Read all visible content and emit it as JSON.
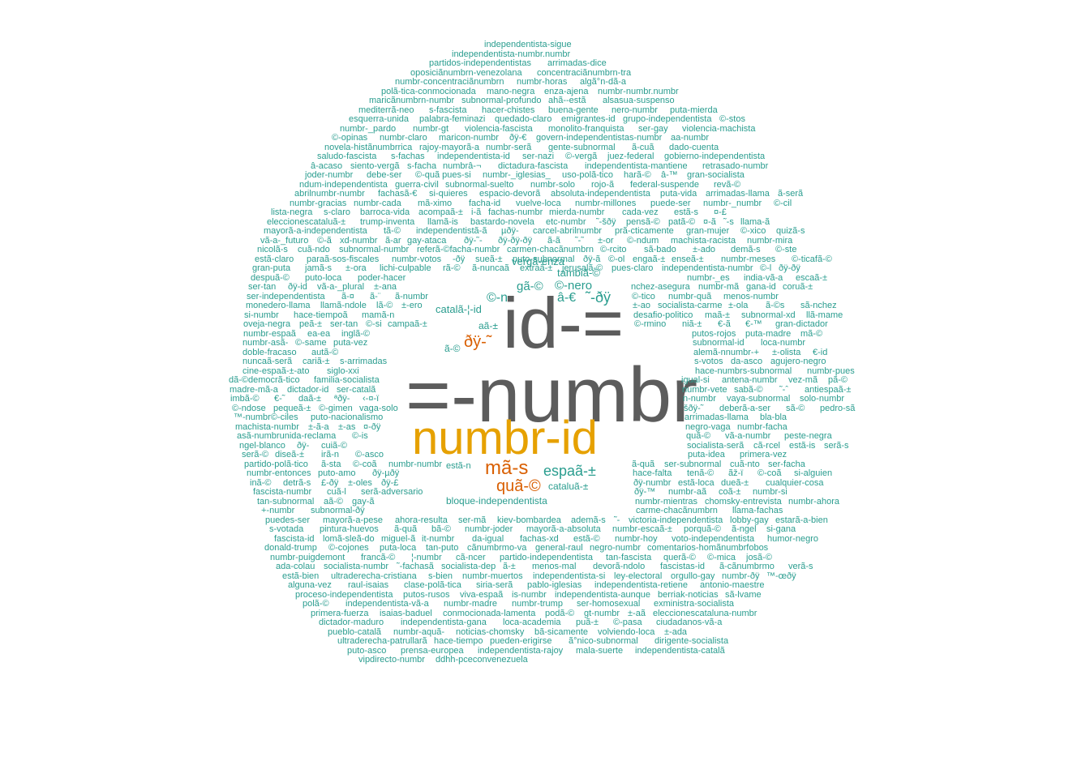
{
  "colors": {
    "background": "#ffffff",
    "tier_main": "#5c5c5c",
    "tier_second": "#e6a100",
    "tier_third": "#d95f02",
    "tier_small": "#2a9d8f"
  },
  "words": {
    "big": [
      {
        "text": "id-=",
        "tier": "main"
      },
      {
        "text": "=-numbr",
        "tier": "main"
      },
      {
        "text": "numbr-id",
        "tier": "second"
      },
      {
        "text": "mã-s",
        "tier": "third"
      },
      {
        "text": "ðÿ-˜",
        "tier": "third"
      },
      {
        "text": "quã-©",
        "tier": "third"
      },
      {
        "text": "espaã-±",
        "tier": "small"
      },
      {
        "text": "©-n",
        "tier": "small"
      },
      {
        "text": "˜-ðÿ",
        "tier": "small"
      },
      {
        "text": "â-€",
        "tier": "small"
      },
      {
        "text": "gã-©",
        "tier": "small"
      },
      {
        "text": "©-nero",
        "tier": "small"
      },
      {
        "text": "tambiã-©",
        "tier": "small"
      },
      {
        "text": "vergã-enza",
        "tier": "small"
      },
      {
        "text": "catalã-¦-id",
        "tier": "small"
      },
      {
        "text": "bloque-independentista",
        "tier": "small"
      },
      {
        "text": "cataluã-±",
        "tier": "small"
      },
      {
        "text": "estã-n",
        "tier": "small"
      },
      {
        "text": "ã-©",
        "tier": "small"
      },
      {
        "text": "aã-±",
        "tier": "small"
      }
    ],
    "small": [
      "independentista-sigue",
      "independentista-numbr.numbr",
      "partidos-independentistas",
      "arrimadas-dice",
      "oposiciãnumbrn-venezolana",
      "concentraciãnumbrn-tra",
      "numbr-concentraciãnumbrn",
      "numbr-horas",
      "algã°n-dã-a",
      "polã-tica-conmocionada",
      "mano-negra",
      "enza-ajena",
      "numbr-numbr.numbr",
      "maricãnumbrn-numbr",
      "subnormal-profundo",
      "ahã--estã",
      "alsasua-suspenso",
      "mediterrã-neo",
      "s-fascista",
      "hacer-chistes",
      "buena-gente",
      "nero-numbr",
      "puta-mierda",
      "esquerra-unida",
      "palabra-feminazi",
      "quedado-claro",
      "emigrantes-id",
      "grupo-independentista",
      "©-stos",
      "numbr-_pardo",
      "numbr-gt",
      "violencia-fascista",
      "monolito-franquista",
      "ser-gay",
      "violencia-machista",
      "©-opinas",
      "numbr-claro",
      "maricon-numbr",
      "ðÿ-€",
      "govern-independentistas-numbr",
      "aa-numbr",
      "novela-histãnumbrrica",
      "rajoy-mayorã-a",
      "numbr-serã",
      "gente-subnormal",
      "ã-cuã",
      "dado-cuenta",
      "saludo-fascista",
      "s-fachas",
      "independentista-id",
      "ser-nazi",
      "©-vergã",
      "juez-federal",
      "gobierno-independentista",
      "â-acaso",
      "siento-vergã",
      "s-facha",
      "numbrâ-¬",
      "dictadura-fascista",
      "independentista-mantiene",
      "retrasado-numbr",
      "joder-numbr",
      "debe-ser",
      "©-quã pues-si",
      "numbr-_iglesias_",
      "uso-polã-tico",
      "harã-©",
      "â-™",
      "gran-socialista",
      "ndum-independentista",
      "guerra-civil",
      "subnormal-suelto",
      "numbr-solo",
      "rojo-ã",
      "federal-suspende",
      "revã-©",
      "abrilnumbr-numbr",
      "fachasã-€",
      "si-quieres",
      "espacio-devorã",
      "absoluta-independentista",
      "puta-vida",
      "arrimadas-llama",
      "ã-serã",
      "numbr-gracias",
      "numbr-cada",
      "mã-ximo",
      "facha-id",
      "vuelve-loca",
      "numbr-millones",
      "puede-ser",
      "numbr-_numbr",
      "©-cil",
      "lista-negra",
      "s-claro",
      "barroca-vida",
      "acompaã-±",
      "i-ã",
      "fachas-numbr",
      "mierda-numbr",
      "cada-vez",
      "estã-s",
      "¤-£",
      "eleccionescataluã-±",
      "trump-inventa",
      "llamã-is",
      "bastardo-novela",
      "etc-numbr",
      "˜-šðÿ",
      "pensã-©",
      "patã-©",
      "¤-ã",
      "˜-s",
      "llama-ã",
      "mayorã-a-independentista",
      "tã-©",
      "independentistã-ã",
      "µðÿ-",
      "carcel-abrilnumbr",
      "prã-cticamente",
      "gran-mujer",
      "©-xico",
      "quizã-s",
      "vã-a-_futuro",
      "©-ã",
      "xd-numbr",
      "ã-ar",
      "gay-ataca",
      "ðÿ-˜-",
      "ðÿ-ðÿ-ðÿ",
      "ã-ã",
      "˜-˜",
      "±-or",
      "©-ndum",
      "machista-racista",
      "numbr-mira",
      "nicolã-s",
      "cuã-ndo",
      "subnormal-numbr",
      "referã-©facha-numbr",
      "carmen-chacãnumbrn",
      "©-rcito",
      "sã-bado",
      "±-ado",
      "demã-s",
      "©-ste",
      "estã-claro",
      "paraã-sos-fiscales",
      "numbr-votos",
      "-ðÿ",
      "sueã-±",
      "puto-subnormal",
      "ðÿ-ã",
      "©-ol",
      "engaã-±",
      "enseã-±",
      "numbr-meses",
      "©-ticafã-©",
      "gran-puta",
      "jamã-s",
      "±-ora",
      "lichi-culpable",
      "rã-©",
      "ã-nuncaã",
      "extraã-±",
      "jerusalã-©",
      "pues-claro",
      "independentista-numbr",
      "©-l",
      "ðÿ-ðÿ",
      "despuã-©",
      "puto-loca",
      "poder-hacer",
      "numbr-_es",
      "india-vã-a",
      "escaã-±",
      "ser-tan",
      "ðÿ-id",
      "vã-a-_plural",
      "±-ana",
      "nchez-asegura",
      "numbr-mã",
      "gana-id",
      "coruã-±",
      "ser-independentista",
      "ã-¤",
      "ã-¨",
      "ã-numbr",
      "©-tico",
      "numbr-quã",
      "menos-numbr",
      "monedero-llama",
      "llamã-ndole",
      "lã-©",
      "±-ero",
      "±-ao",
      "socialista-carme",
      "±-ola",
      "ã-©s",
      "sã-nchez",
      "si-numbr",
      "hace-tiempoã",
      "mamã-n",
      "desafio-politico",
      "maã-±",
      "subnormal-xd",
      "llã-mame",
      "oveja-negra",
      "peã-±",
      "ser-tan",
      "©-si",
      "campaã-±",
      "©-rmino",
      "niã-±",
      "€-ã",
      "€-™",
      "gran-dictador",
      "numbr-espaã",
      "ea-ea",
      "inglã-©",
      "putos-rojos",
      "puta-madre",
      "mã-©",
      "numbr-asã-",
      "©-same",
      "puta-vez",
      "subnormal-id",
      "loca-numbr",
      "doble-fracaso",
      "autã-©",
      "alemã-nnumbr-+",
      "±-olista",
      "€-id",
      "nuncaã-serã",
      "cariã-±",
      "s-arrimadas",
      "s-votos",
      "da-asco",
      "agujero-negro",
      "cine-espaã-±-ato",
      "siglo-xxi",
      "hace-numbrs-subnormal",
      "numbr-pues",
      "dã-©democrã-tico",
      "familia-socialista",
      "igual-si",
      "antena-numbr",
      "vez-mã",
      "pã-©",
      "madre-mã-a",
      "dictador-id",
      "ser-catalã",
      "numbr-vete",
      "sabã-©",
      "˜-ˆ",
      "antiespaã-±",
      "imbã-©",
      "€-˜",
      "daã-±",
      "ªðÿ-",
      "‹-¤-ï",
      "n-numbr",
      "vaya-subnormal",
      "solo-numbr",
      "©-ndose",
      "pequeã-±",
      "©-gimen",
      "vaga-solo",
      "šðÿ-˜",
      "deberã-a-ser",
      "sã-©",
      "pedro-sã",
      "™-numbr©-ciles",
      "puto-nacionalismo",
      "arrimadas-llama",
      "bla-bla",
      "machista-numbr",
      "±-ã-a",
      "±-as",
      "¤-ðÿ",
      "negro-vaga",
      "numbr-facha",
      "asã-numbrunida-reclama",
      "©-is",
      "quã-©",
      "vã-a-numbr",
      "peste-negra",
      "ngel-blanco",
      "ðÿ-",
      "cuiã-©",
      "socialista-serã",
      "cã-rcel",
      "estã-is",
      "serã-s",
      "serã-©",
      "diseã-±",
      "irã-n",
      "©-asco",
      "puta-idea",
      "primera-vez",
      "partido-polã-tico",
      "ã-sta",
      "©-coã",
      "numbr-numbr",
      "ã-quã",
      "ser-subnormal",
      "cuã-nto",
      "ser-facha",
      "numbr-entonces",
      "puto-amo",
      "ðÿ-µðÿ",
      "hace-falta",
      "tenã-©",
      "ãž-ï",
      "©-coã",
      "si-alguien",
      "inã-©",
      "detrã-s",
      "£-ðÿ",
      "±-oles",
      "ðÿ-£",
      "ðÿ-numbr",
      "estã-loca",
      "dueã-±",
      "cualquier-cosa",
      "fascista-numbr",
      "cuã-l",
      "serã-adversario",
      "ðÿ-™",
      "numbr-aã",
      "coã-±",
      "numbr-si",
      "tan-subnormal",
      "aã-©",
      "gay-ã",
      "numbr-mientras",
      "chomsky-entrevista",
      "numbr-ahora",
      "+-numbr",
      "subnormal-ðÿ",
      "carme-chacãnumbrn",
      "llama-fachas",
      "puedes-ser",
      "mayorã-a-pese",
      "ahora-resulta",
      "ser-mã",
      "kiev-bombardea",
      "ademã-s",
      "˜-",
      "victoria-independentista",
      "lobby-gay",
      "estarã-a-bien",
      "s-votada",
      "pintura-huevos",
      "ã-quã",
      "bã-©",
      "numbr-joder",
      "mayorã-a-absoluta",
      "numbr-escaã-±",
      "porquã-©",
      "ã-ngel",
      "si-gana",
      "fascista-id",
      "lomã-sleã-do",
      "miguel-ã",
      "it-numbr",
      "da-igual",
      "fachas-xd",
      "estã-©",
      "numbr-hoy",
      "voto-independentista",
      "humor-negro",
      "donald-trump",
      "©-cojones",
      "puta-loca",
      "tan-puto",
      "cãnumbrmo-va",
      "general-raul",
      "negro-numbr",
      "comentarios-homãnumbrfobos",
      "numbr-puigdemont",
      "francã-©",
      "¦-numbr",
      "cã-ncer",
      "partido-independentista",
      "tan-fascista",
      "querã-©",
      "©-mica",
      "josã-©",
      "ada-colau",
      "socialista-numbr",
      "˜-fachasã",
      "socialista-dep",
      "ã-±",
      "menos-mal",
      "devorã-ndolo",
      "fascistas-id",
      "ã-cãnumbrmo",
      "verã-s",
      "estã-bien",
      "ultraderecha-cristiana",
      "s-bien",
      "numbr-muertos",
      "independentista-si",
      "ley-electoral",
      "orgullo-gay",
      "numbr-ðÿ",
      "™-œðÿ",
      "alguna-vez",
      "raul-isaias",
      "clase-polã-tica",
      "siria-serã",
      "pablo-iglesias",
      "independentista-retiene",
      "antonio-maestre",
      "proceso-independentista",
      "putos-rusos",
      "viva-espaã",
      "is-numbr",
      "independentista-aunque",
      "berriak-noticias",
      "sã-lvame",
      "polã-©",
      "independentista-vã-a",
      "numbr-madre",
      "numbr-trump",
      "ser-homosexual",
      "exministra-socialista",
      "primera-fuerza",
      "isaias-baduel",
      "conmocionada-lamenta",
      "podã-©",
      "gt-numbr",
      "±-aã",
      "eleccionescataluna-numbr",
      "dictador-maduro",
      "independentista-gana",
      "loca-academia",
      "puã-±",
      "©-pasa",
      "ciudadanos-vã-a",
      "pueblo-catalã",
      "numbr-aquã-",
      "noticias-chomsky",
      "bã-sicamente",
      "volviendo-loca",
      "±-ada",
      "ultraderecha-patrullarã",
      "hace-tiempo",
      "pueden-erigirse",
      "ã°nico-subnormal",
      "dirigente-socialista",
      "puto-asco",
      "prensa-europea",
      "independentista-rajoy",
      "mala-suerte",
      "independentista-catalã",
      "vipdirecto-numbr",
      "ddhh-pceconvenezuela"
    ]
  }
}
